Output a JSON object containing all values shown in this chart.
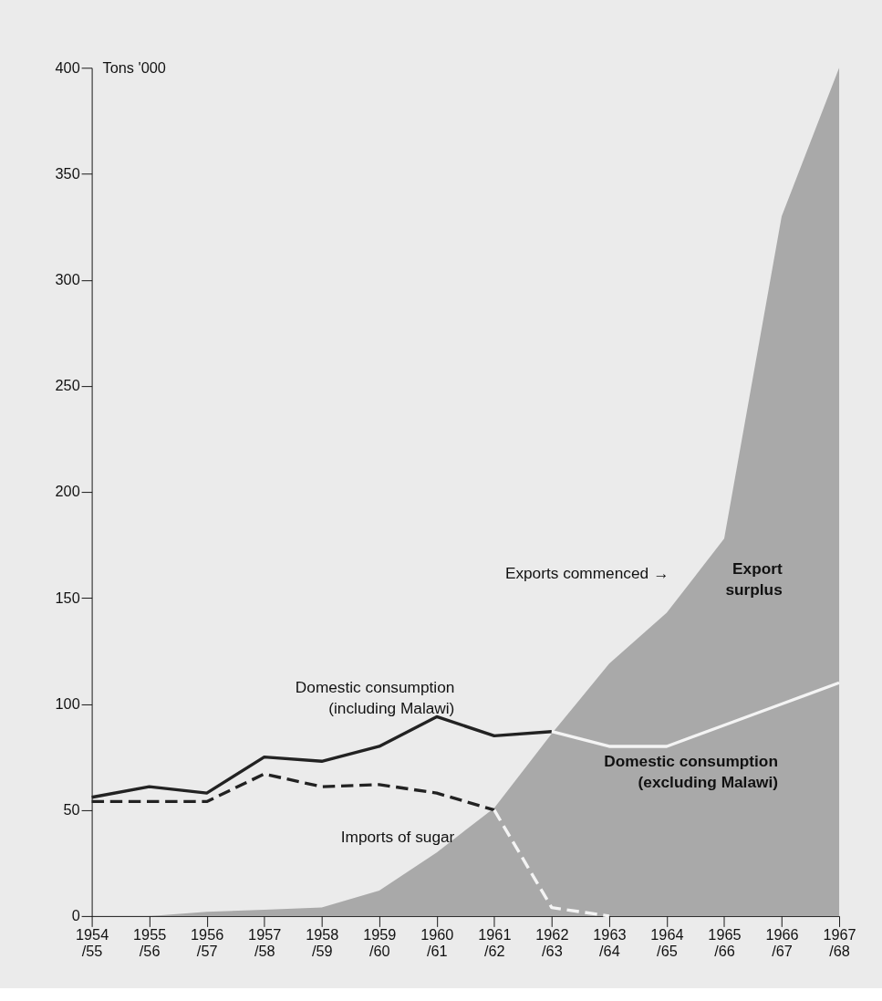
{
  "chart_data": {
    "type": "line",
    "ylabel": "Tons '000",
    "categories": [
      "1954\n/55",
      "1955\n/56",
      "1956\n/57",
      "1957\n/58",
      "1958\n/59",
      "1959\n/60",
      "1960\n/61",
      "1961\n/62",
      "1962\n/63",
      "1963\n/64",
      "1964\n/65",
      "1965\n/66",
      "1966\n/67",
      "1967\n/68"
    ],
    "ylim": [
      0,
      400
    ],
    "yticks": [
      0,
      50,
      100,
      150,
      200,
      250,
      300,
      350,
      400
    ],
    "series": [
      {
        "type": "area",
        "color": "#a9a9a9",
        "values": [
          0,
          0,
          2,
          3,
          4,
          12,
          30,
          51,
          86,
          119,
          143,
          178,
          330,
          400
        ]
      },
      {
        "name": "Domestic consumption\n(including Malawi)",
        "line_style": "solid",
        "color": "#222222",
        "values": [
          56,
          61,
          58,
          75,
          73,
          80,
          94,
          85,
          87,
          null,
          null,
          null,
          null,
          null
        ]
      },
      {
        "name": "Imports of sugar",
        "line_style": "dashed",
        "color": "#222222",
        "values": [
          54,
          54,
          54,
          67,
          61,
          62,
          58,
          50,
          null,
          null,
          null,
          null,
          null,
          null
        ]
      },
      {
        "line_style": "dashed",
        "color": "#f4f4f4",
        "values": [
          null,
          null,
          null,
          null,
          null,
          null,
          null,
          50,
          4,
          0,
          null,
          null,
          null,
          null
        ]
      },
      {
        "name": "Domestic consumption\n(excluding Malawi)",
        "line_style": "solid",
        "color": "#f4f4f4",
        "values": [
          null,
          null,
          null,
          null,
          null,
          null,
          null,
          null,
          87,
          80,
          80,
          90,
          100,
          110
        ]
      }
    ],
    "annotations": [
      "Exports commenced →",
      "Export\nsurplus"
    ]
  }
}
